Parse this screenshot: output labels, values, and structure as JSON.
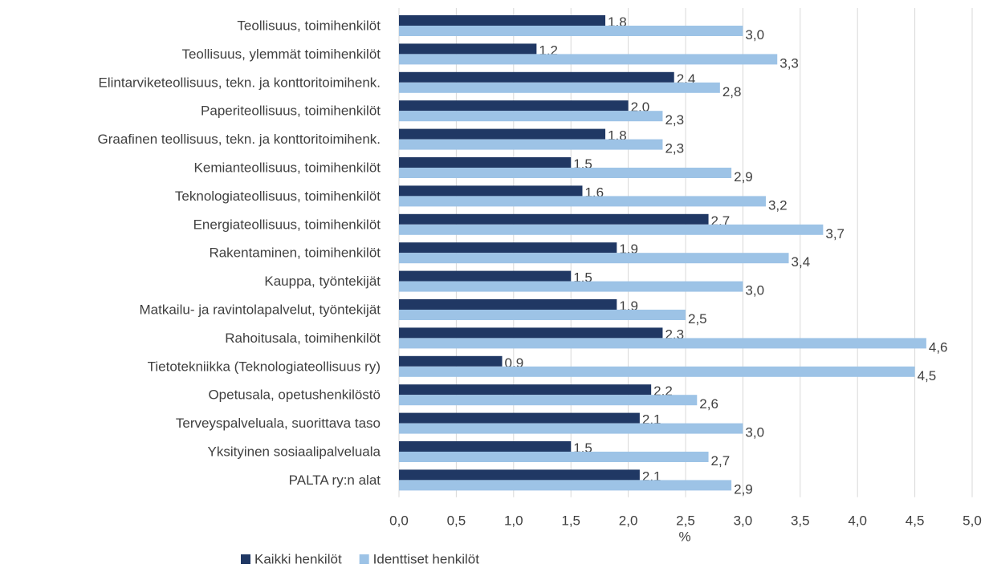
{
  "chart_data": {
    "type": "barh",
    "categories": [
      "Teollisuus, toimihenkilöt",
      "Teollisuus, ylemmät toimihenkilöt",
      "Elintarviketeollisuus, tekn. ja konttoritoimihenk.",
      "Paperiteollisuus, toimihenkilöt",
      "Graafinen teollisuus, tekn. ja konttoritoimihenk.",
      "Kemianteollisuus, toimihenkilöt",
      "Teknologiateollisuus, toimihenkilöt",
      "Energiateollisuus, toimihenkilöt",
      "Rakentaminen, toimihenkilöt",
      "Kauppa, työntekijät",
      "Matkailu- ja ravintolapalvelut, työntekijät",
      "Rahoitusala, toimihenkilöt",
      "Tietotekniikka (Teknologiateollisuus ry)",
      "Opetusala, opetushenkilöstö",
      "Terveyspalveluala, suorittava taso",
      "Yksityinen sosiaalipalveluala",
      "PALTA ry:n alat"
    ],
    "series": [
      {
        "name": "Kaikki henkilöt",
        "color": "#203864",
        "values": [
          1.8,
          1.2,
          2.4,
          2.0,
          1.8,
          1.5,
          1.6,
          2.7,
          1.9,
          1.5,
          1.9,
          2.3,
          0.9,
          2.2,
          2.1,
          1.5,
          2.1
        ],
        "value_labels": [
          "1,8",
          "1,2",
          "2,4",
          "2,0",
          "1,8",
          "1,5",
          "1,6",
          "2,7",
          "1,9",
          "1,5",
          "1,9",
          "2,3",
          "0,9",
          "2,2",
          "2,1",
          "1,5",
          "2,1"
        ]
      },
      {
        "name": "Identtiset henkilöt",
        "color": "#9dc3e6",
        "values": [
          3.0,
          3.3,
          2.8,
          2.3,
          2.3,
          2.9,
          3.2,
          3.7,
          3.4,
          3.0,
          2.5,
          4.6,
          4.5,
          2.6,
          3.0,
          2.7,
          2.9
        ],
        "value_labels": [
          "3,0",
          "3,3",
          "2,8",
          "2,3",
          "2,3",
          "2,9",
          "3,2",
          "3,7",
          "3,4",
          "3,0",
          "2,5",
          "4,6",
          "4,5",
          "2,6",
          "3,0",
          "2,7",
          "2,9"
        ]
      }
    ],
    "xlabel": "%",
    "xlim": [
      0,
      5
    ],
    "xticks": [
      {
        "value": 0,
        "label": "0,0"
      },
      {
        "value": 0.5,
        "label": "0,5"
      },
      {
        "value": 1,
        "label": "1,0"
      },
      {
        "value": 1.5,
        "label": "1,5"
      },
      {
        "value": 2,
        "label": "2,0"
      },
      {
        "value": 2.5,
        "label": "2,5"
      },
      {
        "value": 3,
        "label": "3,0"
      },
      {
        "value": 3.5,
        "label": "3,5"
      },
      {
        "value": 4,
        "label": "4,0"
      },
      {
        "value": 4.5,
        "label": "4,5"
      },
      {
        "value": 5,
        "label": "5,0"
      }
    ],
    "grid": true
  }
}
